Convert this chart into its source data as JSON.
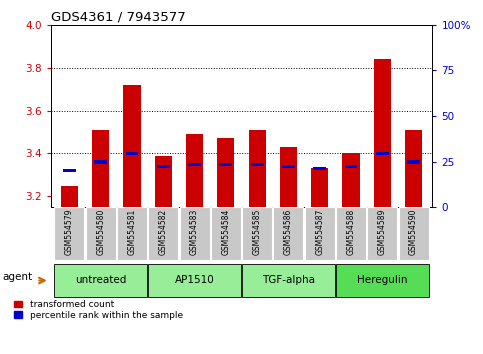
{
  "title": "GDS4361 / 7943577",
  "samples": [
    "GSM554579",
    "GSM554580",
    "GSM554581",
    "GSM554582",
    "GSM554583",
    "GSM554584",
    "GSM554585",
    "GSM554586",
    "GSM554587",
    "GSM554588",
    "GSM554589",
    "GSM554590"
  ],
  "red_values": [
    3.25,
    3.51,
    3.72,
    3.39,
    3.49,
    3.47,
    3.51,
    3.43,
    3.33,
    3.4,
    3.84,
    3.51
  ],
  "blue_values": [
    3.32,
    3.36,
    3.4,
    3.34,
    3.35,
    3.35,
    3.35,
    3.34,
    3.33,
    3.34,
    3.4,
    3.36
  ],
  "ylim_left": [
    3.15,
    4.0
  ],
  "ylim_right": [
    0,
    100
  ],
  "yticks_left": [
    3.2,
    3.4,
    3.6,
    3.8,
    4.0
  ],
  "yticks_right": [
    0,
    25,
    50,
    75,
    100
  ],
  "grid_lines": [
    3.4,
    3.6,
    3.8
  ],
  "groups": [
    {
      "label": "untreated",
      "start": 0,
      "end": 2
    },
    {
      "label": "AP1510",
      "start": 3,
      "end": 5
    },
    {
      "label": "TGF-alpha",
      "start": 6,
      "end": 8
    },
    {
      "label": "Heregulin",
      "start": 9,
      "end": 11
    }
  ],
  "bar_color_red": "#cc0000",
  "bar_color_blue": "#0000cc",
  "bar_width": 0.55,
  "left_tick_color": "#cc0000",
  "right_tick_color": "#0000cc",
  "legend_labels": [
    "transformed count",
    "percentile rank within the sample"
  ],
  "legend_colors": [
    "#cc0000",
    "#0000cc"
  ],
  "agent_label": "agent",
  "agent_arrow_color": "#cc6600",
  "group_color_light": "#98ee98",
  "group_color_dark": "#55dd55"
}
